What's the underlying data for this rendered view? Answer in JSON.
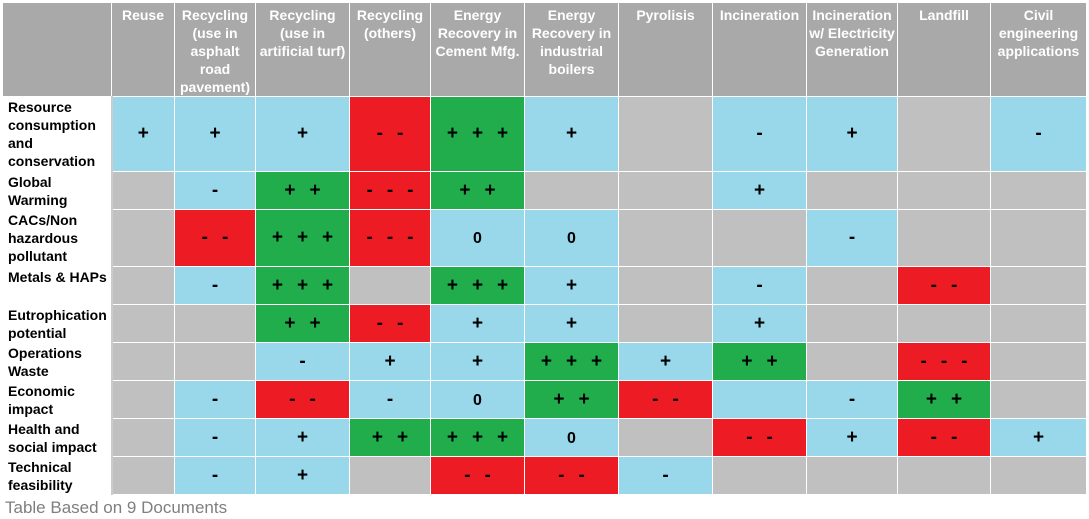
{
  "colors": {
    "gray": "#c0c0c0",
    "blue": "#99d7ea",
    "green": "#22ad4c",
    "red": "#ed1c24",
    "header": "#a9a9a9"
  },
  "table": {
    "columns": [
      "Reuse",
      "Recycling (use in asphalt road pavement)",
      "Recycling (use in artificial turf)",
      "Recycling (others)",
      "Energy Recovery in Cement Mfg.",
      "Energy Recovery in industrial boilers",
      "Pyrolisis",
      "Incineration",
      "Incineration w/ Electricity Generation",
      "Landfill",
      "Civil engineering applications"
    ],
    "rows": [
      {
        "label": "Resource consumption and conservation",
        "cells": [
          {
            "color": "blue",
            "symbols": [
              "+"
            ]
          },
          {
            "color": "blue",
            "symbols": [
              "+"
            ]
          },
          {
            "color": "blue",
            "symbols": [
              "+"
            ]
          },
          {
            "color": "red",
            "symbols": [
              "-",
              "-"
            ]
          },
          {
            "color": "green",
            "symbols": [
              "+",
              "+",
              "+"
            ]
          },
          {
            "color": "blue",
            "symbols": [
              "+"
            ]
          },
          {
            "color": "gray",
            "symbols": []
          },
          {
            "color": "blue",
            "symbols": [
              "-"
            ]
          },
          {
            "color": "blue",
            "symbols": [
              "+"
            ]
          },
          {
            "color": "gray",
            "symbols": []
          },
          {
            "color": "blue",
            "symbols": [
              "-"
            ]
          }
        ]
      },
      {
        "label": "Global Warming",
        "cells": [
          {
            "color": "gray",
            "symbols": []
          },
          {
            "color": "blue",
            "symbols": [
              "-"
            ]
          },
          {
            "color": "green",
            "symbols": [
              "+",
              "+"
            ]
          },
          {
            "color": "red",
            "symbols": [
              "-",
              "-",
              "-"
            ]
          },
          {
            "color": "green",
            "symbols": [
              "+",
              "+"
            ]
          },
          {
            "color": "gray",
            "symbols": []
          },
          {
            "color": "gray",
            "symbols": []
          },
          {
            "color": "blue",
            "symbols": [
              "+"
            ]
          },
          {
            "color": "gray",
            "symbols": []
          },
          {
            "color": "gray",
            "symbols": []
          },
          {
            "color": "gray",
            "symbols": []
          }
        ]
      },
      {
        "label": "CACs/Non hazardous pollutant",
        "cells": [
          {
            "color": "gray",
            "symbols": []
          },
          {
            "color": "red",
            "symbols": [
              "-",
              "-"
            ]
          },
          {
            "color": "green",
            "symbols": [
              "+",
              "+",
              "+"
            ]
          },
          {
            "color": "red",
            "symbols": [
              "-",
              "-",
              "-"
            ]
          },
          {
            "color": "blue",
            "symbols": [
              "0"
            ]
          },
          {
            "color": "blue",
            "symbols": [
              "0"
            ]
          },
          {
            "color": "gray",
            "symbols": []
          },
          {
            "color": "gray",
            "symbols": []
          },
          {
            "color": "blue",
            "symbols": [
              "-"
            ]
          },
          {
            "color": "gray",
            "symbols": []
          },
          {
            "color": "gray",
            "symbols": []
          }
        ]
      },
      {
        "label": "Metals & HAPs",
        "cells": [
          {
            "color": "gray",
            "symbols": []
          },
          {
            "color": "blue",
            "symbols": [
              "-"
            ]
          },
          {
            "color": "green",
            "symbols": [
              "+",
              "+",
              "+"
            ]
          },
          {
            "color": "gray",
            "symbols": []
          },
          {
            "color": "green",
            "symbols": [
              "+",
              "+",
              "+"
            ]
          },
          {
            "color": "blue",
            "symbols": [
              "+"
            ]
          },
          {
            "color": "gray",
            "symbols": []
          },
          {
            "color": "blue",
            "symbols": [
              "-"
            ]
          },
          {
            "color": "gray",
            "symbols": []
          },
          {
            "color": "red",
            "symbols": [
              "-",
              "-"
            ]
          },
          {
            "color": "gray",
            "symbols": []
          }
        ]
      },
      {
        "label": "Eutrophication potential",
        "cells": [
          {
            "color": "gray",
            "symbols": []
          },
          {
            "color": "gray",
            "symbols": []
          },
          {
            "color": "green",
            "symbols": [
              "+",
              "+"
            ]
          },
          {
            "color": "red",
            "symbols": [
              "-",
              "-"
            ]
          },
          {
            "color": "blue",
            "symbols": [
              "+"
            ]
          },
          {
            "color": "blue",
            "symbols": [
              "+"
            ]
          },
          {
            "color": "gray",
            "symbols": []
          },
          {
            "color": "blue",
            "symbols": [
              "+"
            ]
          },
          {
            "color": "gray",
            "symbols": []
          },
          {
            "color": "gray",
            "symbols": []
          },
          {
            "color": "gray",
            "symbols": []
          }
        ]
      },
      {
        "label": "Operations Waste",
        "cells": [
          {
            "color": "gray",
            "symbols": []
          },
          {
            "color": "gray",
            "symbols": []
          },
          {
            "color": "blue",
            "symbols": [
              "-"
            ]
          },
          {
            "color": "blue",
            "symbols": [
              "+"
            ]
          },
          {
            "color": "blue",
            "symbols": [
              "+"
            ]
          },
          {
            "color": "green",
            "symbols": [
              "+",
              "+",
              "+"
            ]
          },
          {
            "color": "blue",
            "symbols": [
              "+"
            ]
          },
          {
            "color": "green",
            "symbols": [
              "+",
              "+"
            ]
          },
          {
            "color": "gray",
            "symbols": []
          },
          {
            "color": "red",
            "symbols": [
              "-",
              "-",
              "-"
            ]
          },
          {
            "color": "gray",
            "symbols": []
          }
        ]
      },
      {
        "label": "Economic impact",
        "cells": [
          {
            "color": "gray",
            "symbols": []
          },
          {
            "color": "blue",
            "symbols": [
              "-"
            ]
          },
          {
            "color": "red",
            "symbols": [
              "-",
              "-"
            ]
          },
          {
            "color": "blue",
            "symbols": [
              "-"
            ]
          },
          {
            "color": "blue",
            "symbols": [
              "0"
            ]
          },
          {
            "color": "green",
            "symbols": [
              "+",
              "+"
            ]
          },
          {
            "color": "red",
            "symbols": [
              "-",
              "-"
            ]
          },
          {
            "color": "blue",
            "symbols": []
          },
          {
            "color": "blue",
            "symbols": [
              "-"
            ]
          },
          {
            "color": "green",
            "symbols": [
              "+",
              "+"
            ]
          },
          {
            "color": "gray",
            "symbols": []
          }
        ]
      },
      {
        "label": "Health and social impact",
        "cells": [
          {
            "color": "gray",
            "symbols": []
          },
          {
            "color": "blue",
            "symbols": [
              "-"
            ]
          },
          {
            "color": "blue",
            "symbols": [
              "+"
            ]
          },
          {
            "color": "green",
            "symbols": [
              "+",
              "+"
            ]
          },
          {
            "color": "green",
            "symbols": [
              "+",
              "+",
              "+"
            ]
          },
          {
            "color": "blue",
            "symbols": [
              "0"
            ]
          },
          {
            "color": "gray",
            "symbols": []
          },
          {
            "color": "red",
            "symbols": [
              "-",
              "-"
            ]
          },
          {
            "color": "blue",
            "symbols": [
              "+"
            ]
          },
          {
            "color": "red",
            "symbols": [
              "-",
              "-"
            ]
          },
          {
            "color": "blue",
            "symbols": [
              "+"
            ]
          }
        ]
      },
      {
        "label": "Technical feasibility",
        "cells": [
          {
            "color": "gray",
            "symbols": []
          },
          {
            "color": "blue",
            "symbols": [
              "-"
            ]
          },
          {
            "color": "blue",
            "symbols": [
              "+"
            ]
          },
          {
            "color": "gray",
            "symbols": []
          },
          {
            "color": "red",
            "symbols": [
              "-",
              "-"
            ]
          },
          {
            "color": "red",
            "symbols": [
              "-",
              "-"
            ]
          },
          {
            "color": "blue",
            "symbols": [
              "-"
            ]
          },
          {
            "color": "gray",
            "symbols": []
          },
          {
            "color": "gray",
            "symbols": []
          },
          {
            "color": "gray",
            "symbols": []
          },
          {
            "color": "gray",
            "symbols": []
          }
        ]
      }
    ]
  },
  "caption": "Table Based on 9 Documents"
}
